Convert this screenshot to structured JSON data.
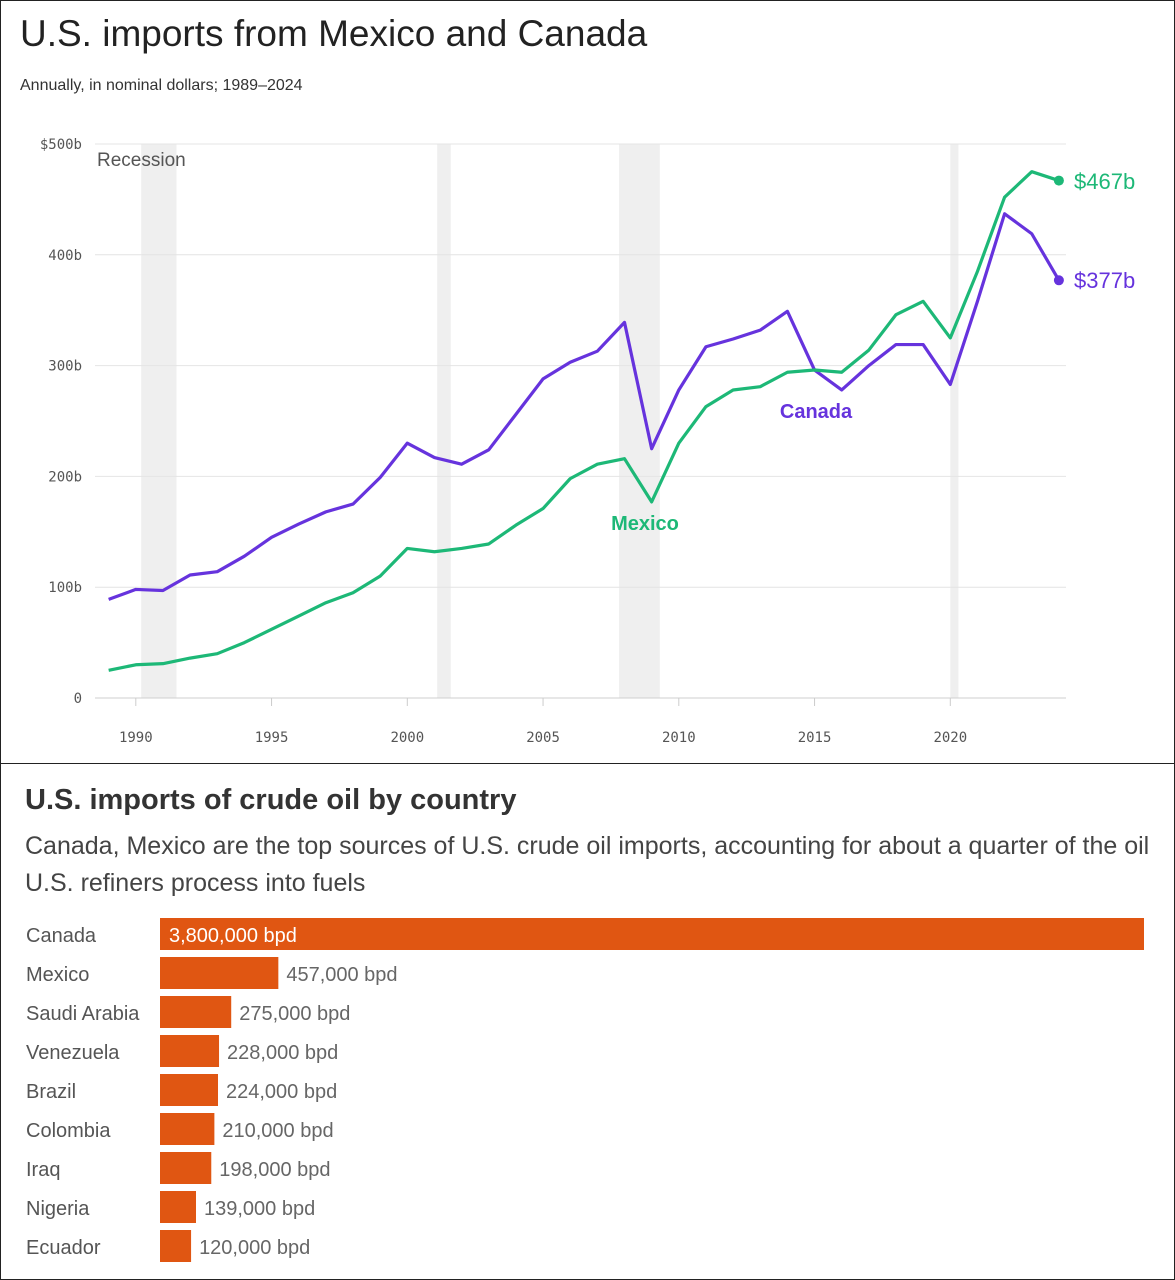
{
  "chart_data": [
    {
      "type": "line",
      "title": "U.S. imports from Mexico and Canada",
      "subtitle": "Annually, in nominal dollars; 1989–2024",
      "x_ticks": [
        "1990",
        "1995",
        "2000",
        "2005",
        "2010",
        "2015",
        "2020"
      ],
      "y_ticks": [
        "$500b",
        "400b",
        "300b",
        "200b",
        "100b",
        "0"
      ],
      "ylim": [
        0,
        500
      ],
      "xlim": [
        1989,
        2024
      ],
      "grid": "horizontal",
      "recession_label": "Recession",
      "recessions": [
        [
          1990.2,
          1991.5
        ],
        [
          2001.1,
          2001.6
        ],
        [
          2007.8,
          2009.3
        ],
        [
          2020.0,
          2020.3
        ]
      ],
      "x": [
        1989,
        1990,
        1991,
        1992,
        1993,
        1994,
        1995,
        1996,
        1997,
        1998,
        1999,
        2000,
        2001,
        2002,
        2003,
        2004,
        2005,
        2006,
        2007,
        2008,
        2009,
        2010,
        2011,
        2012,
        2013,
        2014,
        2015,
        2016,
        2017,
        2018,
        2019,
        2020,
        2021,
        2022,
        2023,
        2024
      ],
      "series": [
        {
          "name": "Canada",
          "color": "#6633dd",
          "end_label": "$377b",
          "values": [
            89,
            98,
            97,
            111,
            114,
            128,
            145,
            157,
            168,
            175,
            199,
            230,
            217,
            211,
            224,
            256,
            288,
            303,
            313,
            339,
            225,
            278,
            317,
            324,
            332,
            349,
            296,
            278,
            300,
            319,
            319,
            283,
            358,
            437,
            419,
            377
          ]
        },
        {
          "name": "Mexico",
          "color": "#1db877",
          "end_label": "$467b",
          "values": [
            25,
            30,
            31,
            36,
            40,
            50,
            62,
            74,
            86,
            95,
            110,
            135,
            132,
            135,
            139,
            156,
            171,
            198,
            211,
            216,
            177,
            230,
            263,
            278,
            281,
            294,
            296,
            294,
            314,
            346,
            358,
            325,
            385,
            452,
            475,
            467
          ]
        }
      ]
    },
    {
      "type": "bar",
      "orientation": "horizontal",
      "title": "U.S. imports of crude oil by country",
      "subtitle": "Canada, Mexico are the top sources of U.S. crude oil imports, accounting for about a quarter of the oil U.S. refiners process into fuels",
      "color": "#e05612",
      "categories": [
        "Canada",
        "Mexico",
        "Saudi Arabia",
        "Venezuela",
        "Brazil",
        "Colombia",
        "Iraq",
        "Nigeria",
        "Ecuador"
      ],
      "values": [
        3800000,
        457000,
        275000,
        228000,
        224000,
        210000,
        198000,
        139000,
        120000
      ],
      "labels": [
        "3,800,000 bpd",
        "457,000 bpd",
        "275,000 bpd",
        "228,000 bpd",
        "224,000 bpd",
        "210,000 bpd",
        "198,000 bpd",
        "139,000 bpd",
        "120,000 bpd"
      ]
    }
  ]
}
